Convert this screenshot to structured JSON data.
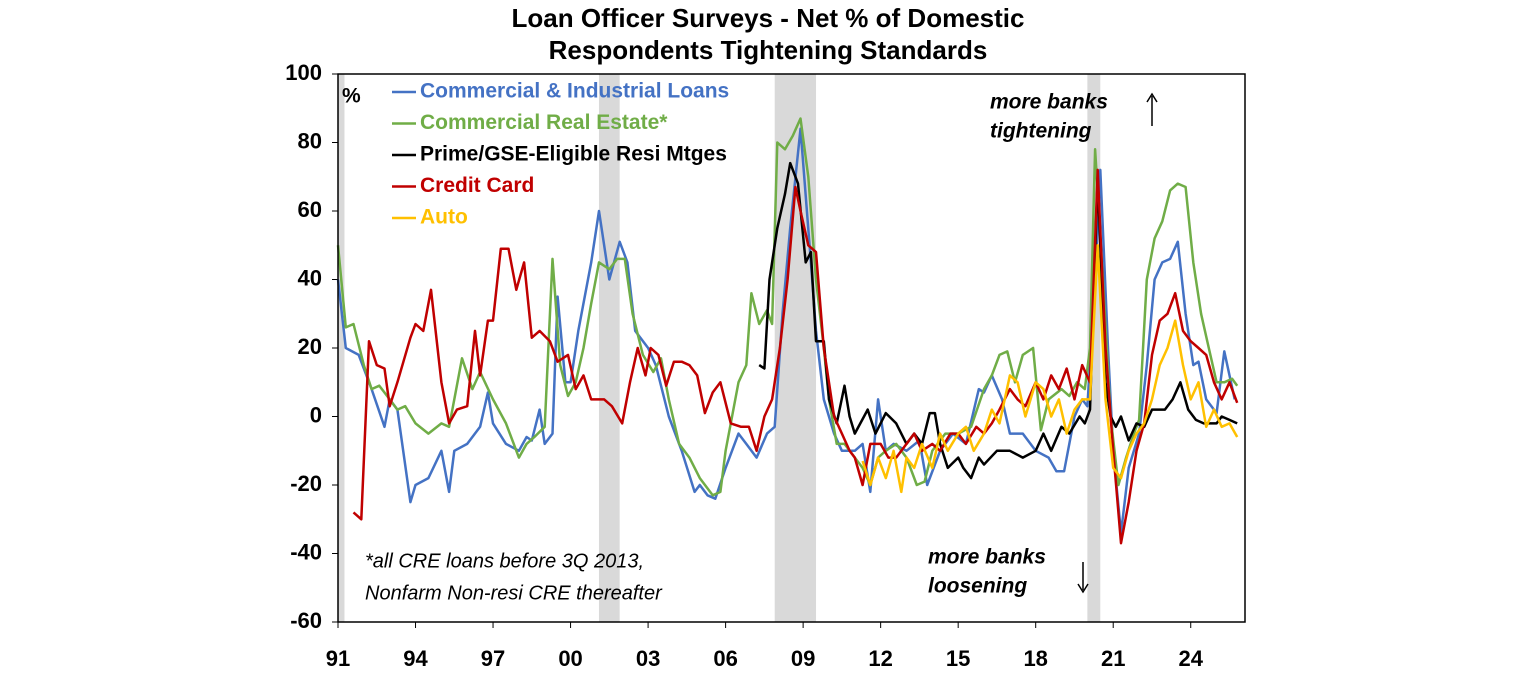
{
  "chart_data": {
    "type": "line",
    "title": [
      "Loan Officer Surveys - Net % of Domestic",
      "Respondents Tightening Standards"
    ],
    "y_unit": "%",
    "xlim": [
      1991,
      2026.1
    ],
    "ylim": [
      -60,
      100
    ],
    "xticks": [
      {
        "value": 1991,
        "label": "91"
      },
      {
        "value": 1994,
        "label": "94"
      },
      {
        "value": 1997,
        "label": "97"
      },
      {
        "value": 2000,
        "label": "00"
      },
      {
        "value": 2003,
        "label": "03"
      },
      {
        "value": 2006,
        "label": "06"
      },
      {
        "value": 2009,
        "label": "09"
      },
      {
        "value": 2012,
        "label": "12"
      },
      {
        "value": 2015,
        "label": "15"
      },
      {
        "value": 2018,
        "label": "18"
      },
      {
        "value": 2021,
        "label": "21"
      },
      {
        "value": 2024,
        "label": "24"
      }
    ],
    "yticks": [
      100,
      80,
      60,
      40,
      20,
      0,
      -20,
      -40,
      -60
    ],
    "recessions": [
      [
        1991.0,
        1991.25
      ],
      [
        2001.1,
        2001.9
      ],
      [
        2007.9,
        2009.5
      ],
      [
        2020.0,
        2020.5
      ]
    ],
    "annotations": [
      [
        "more banks",
        "tightening"
      ],
      [
        "more banks",
        "loosening"
      ]
    ],
    "footnote": [
      "*all CRE loans before 3Q 2013,",
      "Nonfarm Non-resi CRE thereafter"
    ],
    "series": [
      {
        "name": "Commercial & Industrial Loans",
        "color": "#4472c4",
        "x": [
          1991.0,
          1991.3,
          1991.8,
          1992.3,
          1992.8,
          1993.0,
          1993.3,
          1993.8,
          1994.0,
          1994.5,
          1995.0,
          1995.3,
          1995.5,
          1996.0,
          1996.5,
          1996.8,
          1997.0,
          1997.5,
          1998.0,
          1998.3,
          1998.5,
          1998.8,
          1999.0,
          1999.3,
          1999.5,
          1999.8,
          2000.0,
          2000.3,
          2000.8,
          2001.1,
          2001.5,
          2001.9,
          2002.2,
          2002.5,
          2003.0,
          2003.3,
          2003.8,
          2004.3,
          2004.8,
          2005.0,
          2005.3,
          2005.6,
          2006.0,
          2006.5,
          2006.8,
          2007.2,
          2007.6,
          2007.9,
          2008.2,
          2008.5,
          2008.9,
          2009.3,
          2009.5,
          2009.8,
          2010.2,
          2010.5,
          2011.0,
          2011.3,
          2011.6,
          2011.9,
          2012.2,
          2012.5,
          2013.0,
          2013.5,
          2013.8,
          2014.3,
          2014.8,
          2015.3,
          2015.8,
          2016.0,
          2016.3,
          2016.7,
          2017.0,
          2017.5,
          2018.0,
          2018.5,
          2018.8,
          2019.1,
          2019.5,
          2019.8,
          2020.0,
          2020.3,
          2020.5,
          2020.8,
          2021.0,
          2021.3,
          2021.6,
          2022.0,
          2022.3,
          2022.6,
          2022.9,
          2023.2,
          2023.5,
          2023.8,
          2024.1,
          2024.3,
          2024.6,
          2025.0,
          2025.3,
          2025.7
        ],
        "values": [
          40,
          20,
          18,
          8,
          -3,
          5,
          2,
          -25,
          -20,
          -18,
          -10,
          -22,
          -10,
          -8,
          -3,
          7,
          -2,
          -8,
          -10,
          -6,
          -7,
          2,
          -8,
          -5,
          35,
          10,
          10,
          25,
          45,
          60,
          40,
          51,
          45,
          25,
          20,
          15,
          0,
          -10,
          -22,
          -20,
          -23,
          -24,
          -15,
          -5,
          -8,
          -12,
          -5,
          -3,
          30,
          55,
          84,
          45,
          25,
          5,
          -5,
          -10,
          -10,
          -8,
          -22,
          5,
          -10,
          -8,
          -10,
          -7,
          -20,
          -10,
          -5,
          -8,
          8,
          7,
          12,
          5,
          -5,
          -5,
          -10,
          -12,
          -16,
          -16,
          0,
          5,
          3,
          40,
          72,
          20,
          -10,
          -34,
          -15,
          -5,
          15,
          40,
          45,
          46,
          51,
          30,
          15,
          16,
          5,
          1,
          19,
          5
        ]
      },
      {
        "name": "Commercial Real Estate*",
        "color": "#70ad47",
        "x": [
          1991.0,
          1991.3,
          1991.6,
          1992.0,
          1992.3,
          1992.6,
          1993.0,
          1993.3,
          1993.6,
          1994.0,
          1994.5,
          1995.0,
          1995.3,
          1995.5,
          1995.8,
          1996.2,
          1996.5,
          1997.0,
          1997.5,
          1998.0,
          1998.3,
          1998.6,
          1999.0,
          1999.3,
          1999.6,
          1999.9,
          2000.2,
          2000.5,
          2000.8,
          2001.1,
          2001.5,
          2001.8,
          2002.1,
          2002.4,
          2002.8,
          2003.2,
          2003.5,
          2003.8,
          2004.2,
          2004.6,
          2005.0,
          2005.5,
          2005.8,
          2006.0,
          2006.5,
          2006.8,
          2007.0,
          2007.3,
          2007.6,
          2007.8,
          2008.0,
          2008.3,
          2008.6,
          2008.9,
          2009.2,
          2009.5,
          2009.8,
          2010.0,
          2010.3,
          2010.6,
          2011.0,
          2011.3,
          2011.6,
          2011.9,
          2012.2,
          2012.6,
          2013.0,
          2013.4,
          2013.7,
          2014.0,
          2014.5,
          2015.0,
          2015.5,
          2016.0,
          2016.3,
          2016.6,
          2016.9,
          2017.2,
          2017.5,
          2017.9,
          2018.2,
          2018.5,
          2019.0,
          2019.3,
          2019.6,
          2019.9,
          2020.1,
          2020.3,
          2020.6,
          2020.9,
          2021.2,
          2021.5,
          2021.8,
          2022.0,
          2022.3,
          2022.6,
          2022.9,
          2023.2,
          2023.5,
          2023.8,
          2024.1,
          2024.4,
          2024.7,
          2025.0,
          2025.3,
          2025.6,
          2025.8
        ],
        "values": [
          50,
          26,
          27,
          15,
          8,
          9,
          5,
          2,
          3,
          -2,
          -5,
          -2,
          -3,
          5,
          17,
          8,
          13,
          5,
          -2,
          -12,
          -8,
          -6,
          -3,
          46,
          15,
          6,
          10,
          20,
          33,
          45,
          43,
          46,
          46,
          30,
          18,
          13,
          17,
          5,
          -8,
          -12,
          -18,
          -23,
          -22,
          -10,
          10,
          15,
          36,
          27,
          31,
          27,
          80,
          78,
          82,
          87,
          70,
          40,
          20,
          5,
          -8,
          -8,
          -12,
          -15,
          -20,
          -12,
          -10,
          -8,
          -12,
          -20,
          -19,
          -10,
          -5,
          -5,
          -3,
          8,
          12,
          18,
          19,
          10,
          18,
          20,
          -4,
          5,
          8,
          6,
          10,
          8,
          20,
          78,
          40,
          0,
          -20,
          -12,
          -5,
          -1,
          40,
          52,
          57,
          66,
          68,
          67,
          45,
          30,
          20,
          10,
          10,
          11,
          9
        ]
      },
      {
        "name": "Prime/GSE-Eligible Resi Mtges",
        "color": "#000000",
        "x": [
          2007.3,
          2007.5,
          2007.7,
          2008.0,
          2008.3,
          2008.5,
          2008.8,
          2009.1,
          2009.3,
          2009.5,
          2009.8,
          2010.0,
          2010.3,
          2010.6,
          2010.8,
          2011.0,
          2011.5,
          2011.8,
          2012.0,
          2012.2,
          2012.6,
          2013.0,
          2013.3,
          2013.6,
          2013.9,
          2014.1,
          2014.3,
          2014.6,
          2015.0,
          2015.2,
          2015.5,
          2015.8,
          2016.0,
          2016.5,
          2017.0,
          2017.5,
          2018.0,
          2018.3,
          2018.6,
          2019.0,
          2019.3,
          2019.7,
          2019.9,
          2020.1,
          2020.4,
          2020.7,
          2020.9,
          2021.1,
          2021.3,
          2021.6,
          2021.9,
          2022.2,
          2022.5,
          2023.0,
          2023.3,
          2023.6,
          2023.9,
          2024.2,
          2024.5,
          2025.0,
          2025.2,
          2025.5,
          2025.8
        ],
        "values": [
          15,
          14,
          40,
          55,
          65,
          74,
          68,
          45,
          48,
          22,
          22,
          5,
          -2,
          9,
          0,
          -5,
          2,
          -5,
          -2,
          1,
          -2,
          -8,
          -5,
          -8,
          1,
          1,
          -8,
          -15,
          -12,
          -15,
          -18,
          -12,
          -14,
          -10,
          -10,
          -12,
          -10,
          -5,
          -10,
          -3,
          -5,
          0,
          -2,
          2,
          70,
          10,
          0,
          -3,
          0,
          -7,
          -2,
          -3,
          2,
          2,
          5,
          10,
          2,
          -1,
          -2,
          -2,
          0,
          -1,
          -2
        ]
      },
      {
        "name": "Credit Card",
        "color": "#c00000",
        "x": [
          1991.6,
          1991.9,
          1992.2,
          1992.5,
          1992.8,
          1993.0,
          1993.3,
          1993.8,
          1994.0,
          1994.3,
          1994.6,
          1995.0,
          1995.3,
          1995.6,
          1996.0,
          1996.3,
          1996.5,
          1996.8,
          1997.0,
          1997.3,
          1997.6,
          1997.9,
          1998.2,
          1998.5,
          1998.8,
          1999.2,
          1999.5,
          1999.9,
          2000.2,
          2000.5,
          2000.8,
          2001.0,
          2001.3,
          2001.6,
          2002.0,
          2002.3,
          2002.6,
          2002.9,
          2003.1,
          2003.4,
          2003.7,
          2004.0,
          2004.3,
          2004.6,
          2004.9,
          2005.2,
          2005.5,
          2005.8,
          2006.2,
          2006.6,
          2006.9,
          2007.2,
          2007.5,
          2007.8,
          2008.1,
          2008.4,
          2008.7,
          2008.9,
          2009.2,
          2009.5,
          2009.8,
          2010.2,
          2010.5,
          2010.8,
          2011.0,
          2011.3,
          2011.6,
          2012.0,
          2012.3,
          2012.6,
          2013.0,
          2013.3,
          2013.6,
          2014.0,
          2014.3,
          2014.7,
          2015.0,
          2015.3,
          2015.7,
          2016.0,
          2016.3,
          2016.6,
          2017.0,
          2017.3,
          2017.6,
          2018.0,
          2018.3,
          2018.6,
          2018.9,
          2019.2,
          2019.5,
          2019.8,
          2020.1,
          2020.4,
          2020.7,
          2021.0,
          2021.3,
          2021.6,
          2021.9,
          2022.2,
          2022.5,
          2022.8,
          2023.1,
          2023.4,
          2023.7,
          2024.0,
          2024.3,
          2024.6,
          2024.9,
          2025.2,
          2025.5,
          2025.8
        ],
        "values": [
          -28,
          -30,
          22,
          15,
          14,
          3,
          10,
          23,
          27,
          25,
          37,
          10,
          -2,
          2,
          3,
          25,
          12,
          28,
          28,
          49,
          49,
          37,
          45,
          23,
          25,
          22,
          16,
          18,
          8,
          12,
          5,
          5,
          5,
          3,
          -2,
          10,
          20,
          12,
          20,
          18,
          9,
          16,
          16,
          15,
          12,
          1,
          7,
          10,
          -2,
          -3,
          -3,
          -10,
          0,
          5,
          20,
          40,
          67,
          60,
          50,
          48,
          20,
          0,
          -5,
          -10,
          -12,
          -20,
          -8,
          -8,
          -12,
          -12,
          -8,
          -5,
          -10,
          -8,
          -10,
          -5,
          -5,
          -8,
          -3,
          -5,
          -2,
          2,
          8,
          5,
          3,
          10,
          5,
          12,
          8,
          14,
          5,
          15,
          10,
          72,
          20,
          -10,
          -37,
          -25,
          -10,
          -2,
          18,
          28,
          30,
          36,
          25,
          22,
          20,
          18,
          10,
          5,
          10,
          4
        ]
      },
      {
        "name": "Auto",
        "color": "#ffc000",
        "x": [
          2011.3,
          2011.6,
          2011.9,
          2012.2,
          2012.5,
          2012.8,
          2013.0,
          2013.3,
          2013.6,
          2014.0,
          2014.3,
          2014.6,
          2015.0,
          2015.3,
          2015.6,
          2016.0,
          2016.3,
          2016.6,
          2017.0,
          2017.3,
          2017.6,
          2018.0,
          2018.3,
          2018.6,
          2018.9,
          2019.2,
          2019.5,
          2019.8,
          2020.1,
          2020.4,
          2020.7,
          2021.0,
          2021.3,
          2021.6,
          2021.9,
          2022.2,
          2022.5,
          2022.8,
          2023.1,
          2023.4,
          2023.7,
          2024.0,
          2024.3,
          2024.6,
          2024.9,
          2025.2,
          2025.5,
          2025.8
        ],
        "values": [
          -13,
          -20,
          -12,
          -18,
          -10,
          -22,
          -12,
          -15,
          -8,
          -15,
          -5,
          -10,
          -5,
          -3,
          -10,
          -5,
          2,
          -2,
          12,
          10,
          0,
          10,
          8,
          0,
          5,
          -5,
          2,
          5,
          5,
          50,
          5,
          -15,
          -18,
          -10,
          -5,
          -2,
          5,
          15,
          20,
          28,
          15,
          5,
          10,
          -3,
          2,
          -3,
          -2,
          -6
        ]
      }
    ]
  }
}
